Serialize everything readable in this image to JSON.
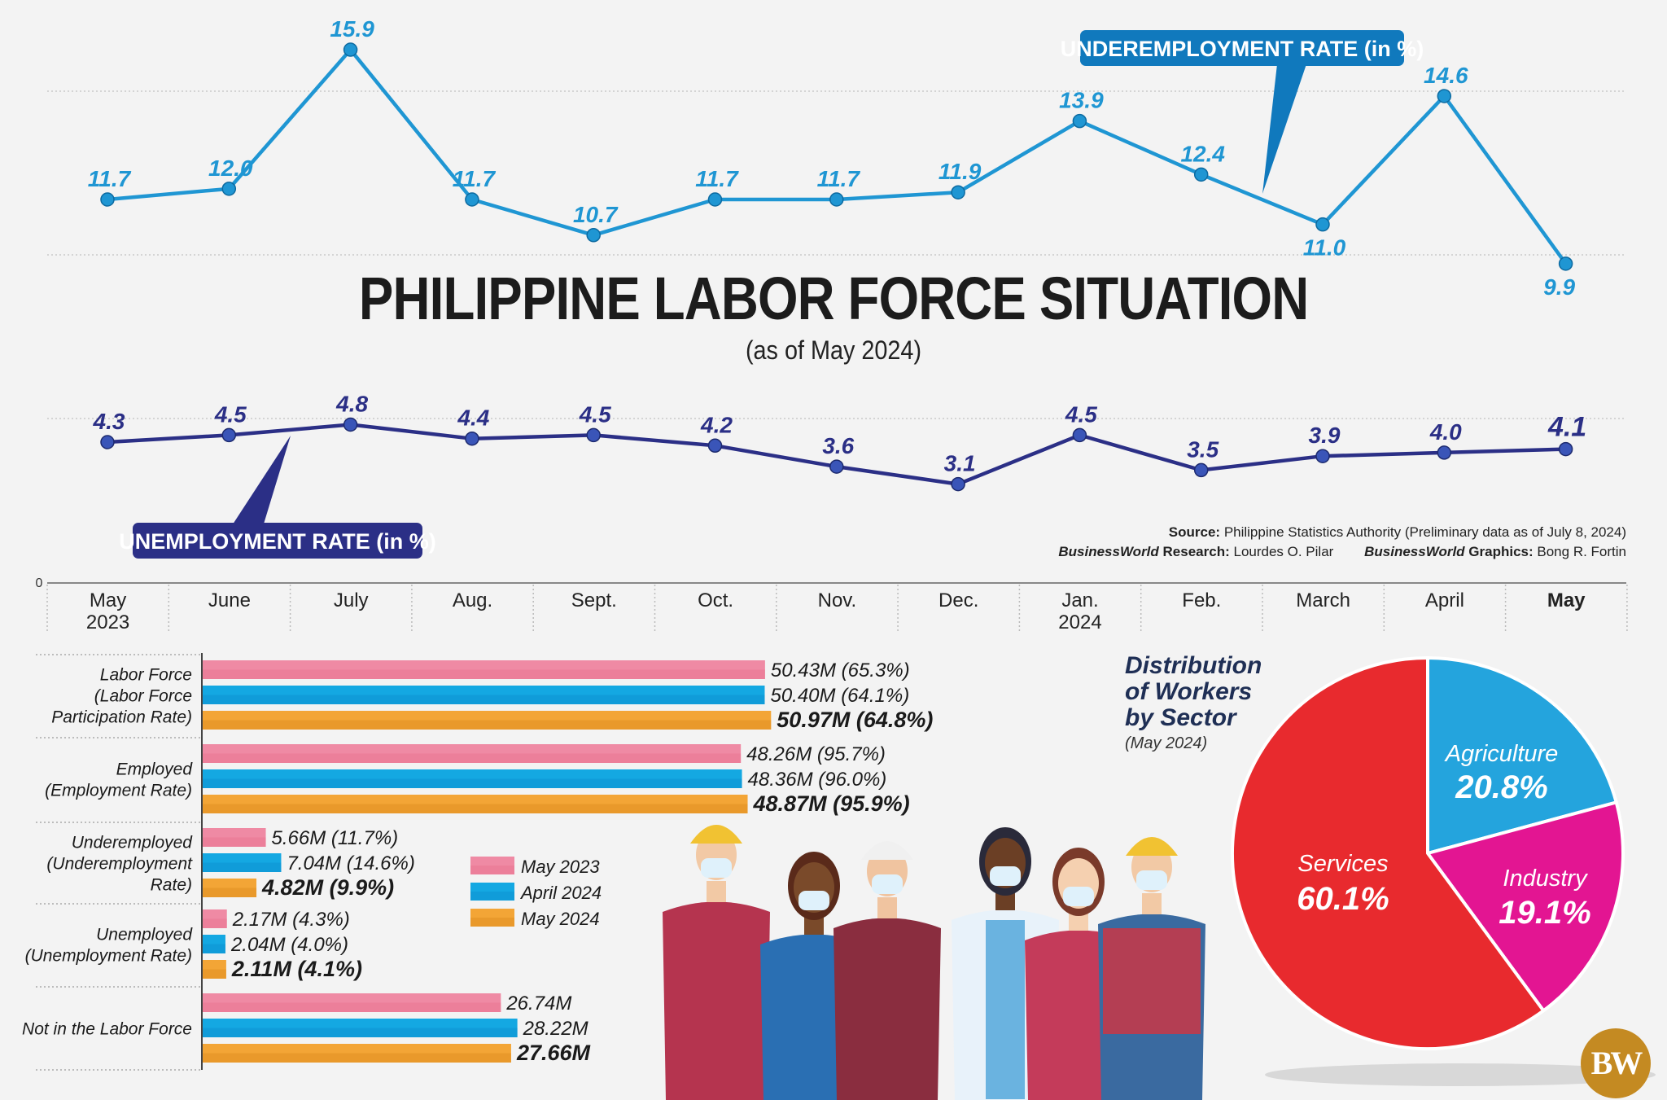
{
  "title": "PHILIPPINE LABOR FORCE SITUATION",
  "subtitle": "(as of May 2024)",
  "source": {
    "label": "Source:",
    "text": "Philippine Statistics Authority (Preliminary data as of July 8, 2024)",
    "research_brand": "BusinessWorld",
    "research_label": "Research:",
    "research_name": "Lourdes O. Pilar",
    "graphics_brand": "BusinessWorld",
    "graphics_label": "Graphics:",
    "graphics_name": "Bong R. Fortin"
  },
  "logo_text": "BW",
  "colors": {
    "underemployment_line": "#1f96d3",
    "unemployment_line": "#2b2f86",
    "may2023": "#ef8aa4",
    "april2024": "#14a8e2",
    "may2024": "#f3a536",
    "services": "#e82a2e",
    "agriculture": "#24a4dd",
    "industry": "#e31592"
  },
  "chart_data": [
    {
      "type": "line",
      "title": "UNDEREMPLOYMENT RATE (in %)",
      "axis_zero_label": "0",
      "x": [
        "May|2023",
        "June",
        "July",
        "Aug.",
        "Sept.",
        "Oct.",
        "Nov.",
        "Dec.",
        "Jan.|2024",
        "Feb.",
        "March",
        "April",
        "May"
      ],
      "series": [
        {
          "name": "UNDEREMPLOYMENT RATE (in %)",
          "values": [
            11.7,
            12.0,
            15.9,
            11.7,
            10.7,
            11.7,
            11.7,
            11.9,
            13.9,
            12.4,
            11.0,
            14.6,
            9.9
          ],
          "labels": [
            "11.7",
            "12.0",
            "15.9",
            "11.7",
            "10.7",
            "11.7",
            "11.7",
            "11.9",
            "13.9",
            "12.4",
            "11.0",
            "14.6",
            "9.9"
          ]
        },
        {
          "name": "UNEMPLOYMENT RATE (in %)",
          "values": [
            4.3,
            4.5,
            4.8,
            4.4,
            4.5,
            4.2,
            3.6,
            3.1,
            4.5,
            3.5,
            3.9,
            4.0,
            4.1
          ],
          "labels": [
            "4.3",
            "4.5",
            "4.8",
            "4.4",
            "4.5",
            "4.2",
            "3.6",
            "3.1",
            "4.5",
            "3.5",
            "3.9",
            "4.0",
            "4.1"
          ]
        }
      ]
    },
    {
      "type": "bar",
      "orientation": "horizontal",
      "legend": [
        "May 2023",
        "April 2024",
        "May 2024"
      ],
      "categories": [
        "Labor Force|(Labor Force|Participation Rate)",
        "Employed|(Employment Rate)",
        "Underemployed|(Underemployment|Rate)",
        "Unemployed|(Unemployment Rate)",
        "Not in the Labor Force"
      ],
      "series": [
        {
          "name": "May 2023",
          "values": [
            50.43,
            48.26,
            5.66,
            2.17,
            26.74
          ],
          "labels": [
            "50.43M (65.3%)",
            "48.26M (95.7%)",
            "5.66M (11.7%)",
            "2.17M (4.3%)",
            "26.74M"
          ]
        },
        {
          "name": "April 2024",
          "values": [
            50.4,
            48.36,
            7.04,
            2.04,
            28.22
          ],
          "labels": [
            "50.40M (64.1%)",
            "48.36M (96.0%)",
            "7.04M (14.6%)",
            "2.04M (4.0%)",
            "28.22M"
          ]
        },
        {
          "name": "May 2024",
          "values": [
            50.97,
            48.87,
            4.82,
            2.11,
            27.66
          ],
          "labels": [
            "50.97M (64.8%)",
            "48.87M (95.9%)",
            "4.82M (9.9%)",
            "2.11M (4.1%)",
            "27.66M"
          ]
        }
      ]
    },
    {
      "type": "pie",
      "title": "Distribution|of Workers|by Sector",
      "subtitle": "(May 2024)",
      "slices": [
        {
          "label": "Agriculture",
          "value": 20.8,
          "text": "20.8%"
        },
        {
          "label": "Industry",
          "value": 19.1,
          "text": "19.1%"
        },
        {
          "label": "Services",
          "value": 60.1,
          "text": "60.1%"
        }
      ]
    }
  ]
}
